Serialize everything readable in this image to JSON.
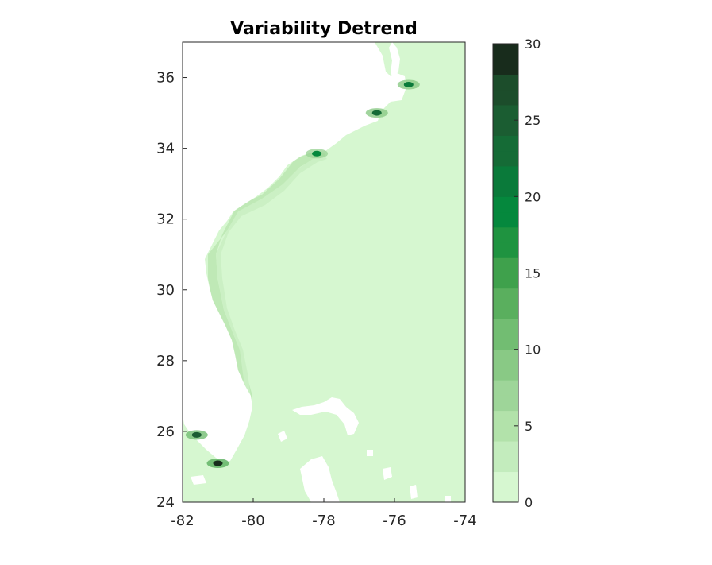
{
  "title": "Variability Detrend",
  "map": {
    "x_ticks": [
      "-82",
      "-80",
      "-78",
      "-76",
      "-74"
    ],
    "y_ticks": [
      "24",
      "26",
      "28",
      "30",
      "32",
      "34",
      "36"
    ],
    "xlim": [
      -82,
      -74
    ],
    "ylim": [
      24,
      37
    ],
    "ocean_background_color": "#d6f7d0",
    "land_color": "#ffffff"
  },
  "colorbar": {
    "ticks": [
      "0",
      "5",
      "10",
      "15",
      "20",
      "25",
      "30"
    ],
    "range": [
      0,
      30
    ],
    "n_levels": 30,
    "colors": [
      "#d6f7d0",
      "#c3ecbd",
      "#b2e2aa",
      "#9ed599",
      "#89c985",
      "#72bd72",
      "#5aaf5e",
      "#3fa14c",
      "#1f9340",
      "#05883d",
      "#0a7a3a",
      "#156b36",
      "#1b5d32",
      "#1c4d2b",
      "#182c1c"
    ]
  },
  "chart_data": {
    "type": "heatmap",
    "title": "Variability Detrend",
    "xlim": [
      -82,
      -74
    ],
    "ylim": [
      24,
      37
    ],
    "colorbar_range": [
      0,
      30
    ],
    "background_value_approx": 0.5,
    "highlights": [
      {
        "lon": -81.0,
        "lat": 25.1,
        "value_approx": 30
      },
      {
        "lon": -81.6,
        "lat": 25.9,
        "value_approx": 25
      },
      {
        "lon": -76.5,
        "lat": 35.0,
        "value_approx": 22
      },
      {
        "lon": -78.2,
        "lat": 33.85,
        "value_approx": 18
      },
      {
        "lon": -75.6,
        "lat": 35.8,
        "value_approx": 20
      }
    ]
  }
}
